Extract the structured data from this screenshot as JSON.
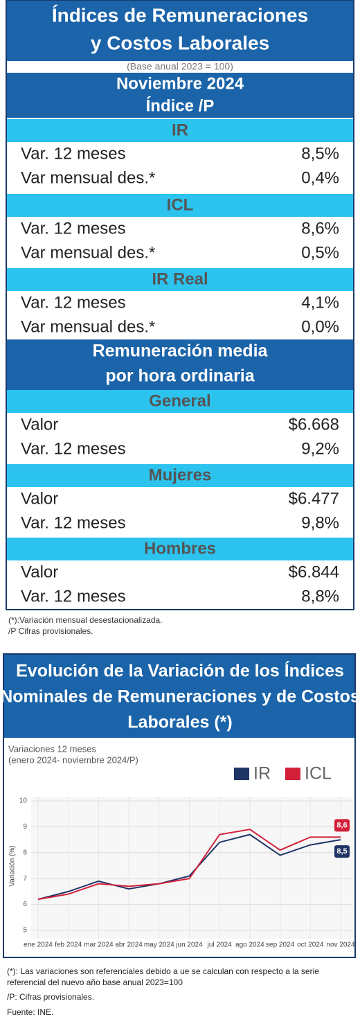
{
  "header": {
    "title_lines": [
      "Índices de Remuneraciones",
      "y Costos Laborales"
    ],
    "base": "(Base anual 2023 = 100)",
    "period_lines": [
      "Noviembre 2024",
      "Índice /P"
    ]
  },
  "index_sections": [
    {
      "name": "IR",
      "rows": [
        [
          "Var. 12 meses",
          "8,5%"
        ],
        [
          "Var mensual des.*",
          "0,4%"
        ]
      ]
    },
    {
      "name": "ICL",
      "rows": [
        [
          "Var. 12 meses",
          "8,6%"
        ],
        [
          "Var mensual des.*",
          "0,5%"
        ]
      ]
    },
    {
      "name": "IR Real",
      "rows": [
        [
          "Var. 12 meses",
          "4,1%"
        ],
        [
          "Var mensual des.*",
          "0,0%"
        ]
      ]
    }
  ],
  "wage_header_lines": [
    "Remuneración media",
    "por hora ordinaria"
  ],
  "wage_sections": [
    {
      "name": "General",
      "rows": [
        [
          "Valor",
          "$6.668"
        ],
        [
          "Var. 12 meses",
          "9,2%"
        ]
      ]
    },
    {
      "name": "Mujeres",
      "rows": [
        [
          "Valor",
          "$6.477"
        ],
        [
          "Var. 12 meses",
          "9,8%"
        ]
      ]
    },
    {
      "name": "Hombres",
      "rows": [
        [
          "Valor",
          "$6.844"
        ],
        [
          "Var. 12 meses",
          "8,8%"
        ]
      ]
    }
  ],
  "table_notes": [
    "(*):Variación mensual desestacionalizada.",
    "/P Cifras provisionales."
  ],
  "chart_data": {
    "type": "line",
    "title_lines": [
      "Evolución de la Variación de los Índices",
      "Nominales de Remuneraciones y de Costos",
      "Laborales (*)"
    ],
    "subtitle_lines": [
      "Variaciones 12 meses",
      "(enero 2024- noviembre 2024/P)"
    ],
    "ylabel": "Variación (%)",
    "categories": [
      "ene 2024",
      "feb 2024",
      "mar 2024",
      "abr 2024",
      "may 2024",
      "jun 2024",
      "jul 2024",
      "ago 2024",
      "sep 2024",
      "oct 2024",
      "nov 2024"
    ],
    "series": [
      {
        "name": "IR",
        "color": "#1f3566",
        "values": [
          6.2,
          6.5,
          6.9,
          6.6,
          6.8,
          7.1,
          8.4,
          8.7,
          7.9,
          8.3,
          8.5
        ],
        "value_labels": [
          null,
          null,
          null,
          null,
          null,
          null,
          null,
          null,
          null,
          null,
          "8,5"
        ]
      },
      {
        "name": "ICL",
        "color": "#d3203a",
        "values": [
          6.2,
          6.4,
          6.8,
          6.7,
          6.8,
          7.0,
          8.7,
          8.9,
          8.1,
          8.6,
          8.6
        ],
        "value_labels": [
          null,
          null,
          null,
          null,
          null,
          null,
          null,
          null,
          null,
          null,
          "8,6"
        ]
      }
    ],
    "ylim": [
      5,
      10
    ],
    "yticks": [
      5,
      6,
      7,
      8,
      9,
      10
    ],
    "grid": true
  },
  "chart_notes": [
    "(*): Las variaciones son referenciales debido a ue se calculan con respecto a la serie",
    "referencial del nuevo año base anual 2023=100",
    "/P: Cifras provisionales.",
    "Fuente: INE."
  ]
}
